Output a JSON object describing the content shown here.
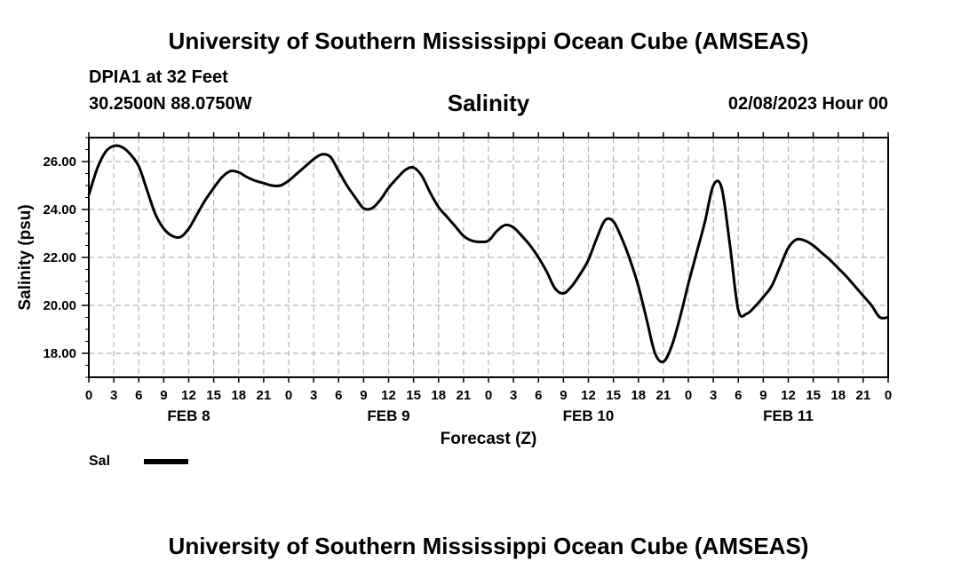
{
  "header": {
    "title": "University of Southern Mississippi Ocean Cube (AMSEAS)",
    "station": "DPIA1 at 32 Feet",
    "coordinates": "30.2500N  88.0750W",
    "run_time": "02/08/2023 Hour 00"
  },
  "footer": {
    "title": "University of Southern Mississippi Ocean Cube (AMSEAS)"
  },
  "legend": {
    "label": "Sal"
  },
  "chart_data": {
    "type": "line",
    "title": "Salinity",
    "xlabel": "Forecast (Z)",
    "ylabel": "Salinity (psu)",
    "xlim": [
      0,
      96
    ],
    "ylim": [
      17,
      27
    ],
    "grid": true,
    "legend_position": "bottom-left",
    "x_ticks": [
      0,
      3,
      6,
      9,
      12,
      15,
      18,
      21,
      24,
      27,
      30,
      33,
      36,
      39,
      42,
      45,
      48,
      51,
      54,
      57,
      60,
      63,
      66,
      69,
      72,
      75,
      78,
      81,
      84,
      87,
      90,
      93,
      96
    ],
    "x_tick_labels": [
      "0",
      "3",
      "6",
      "9",
      "12",
      "15",
      "18",
      "21",
      "0",
      "3",
      "6",
      "9",
      "12",
      "15",
      "18",
      "21",
      "0",
      "3",
      "6",
      "9",
      "12",
      "15",
      "18",
      "21",
      "0",
      "3",
      "6",
      "9",
      "12",
      "15",
      "18",
      "21",
      "0"
    ],
    "y_ticks": [
      18,
      20,
      22,
      24,
      26
    ],
    "y_tick_labels": [
      "18.00",
      "20.00",
      "22.00",
      "24.00",
      "26.00"
    ],
    "date_labels": [
      {
        "text": "FEB 8",
        "x": 12
      },
      {
        "text": "FEB 9",
        "x": 36
      },
      {
        "text": "FEB 10",
        "x": 60
      },
      {
        "text": "FEB 11",
        "x": 84
      }
    ],
    "series": [
      {
        "name": "Sal",
        "color": "#000000",
        "x": [
          0,
          1,
          2,
          3,
          4,
          5,
          6,
          7,
          8,
          9,
          10,
          11,
          12,
          13,
          14,
          15,
          16,
          17,
          18,
          19,
          20,
          21,
          22,
          23,
          24,
          25,
          26,
          27,
          28,
          29,
          30,
          31,
          32,
          33,
          34,
          35,
          36,
          37,
          38,
          39,
          40,
          41,
          42,
          43,
          44,
          45,
          46,
          47,
          48,
          49,
          50,
          51,
          52,
          53,
          54,
          55,
          56,
          57,
          58,
          59,
          60,
          61,
          62,
          63,
          64,
          65,
          66,
          67,
          68,
          69,
          70,
          71,
          72,
          73,
          74,
          75,
          76,
          77,
          78,
          79,
          80,
          81,
          82,
          83,
          84,
          85,
          86,
          87,
          88,
          89,
          90,
          91,
          92,
          93,
          94,
          95,
          96
        ],
        "values": [
          24.6,
          25.7,
          26.4,
          26.65,
          26.6,
          26.3,
          25.8,
          24.8,
          23.8,
          23.2,
          22.9,
          22.85,
          23.2,
          23.8,
          24.4,
          24.9,
          25.35,
          25.6,
          25.55,
          25.35,
          25.2,
          25.1,
          25.0,
          25.0,
          25.2,
          25.5,
          25.8,
          26.1,
          26.3,
          26.2,
          25.6,
          25.0,
          24.5,
          24.05,
          24.05,
          24.4,
          24.9,
          25.3,
          25.65,
          25.75,
          25.4,
          24.7,
          24.1,
          23.7,
          23.3,
          22.9,
          22.7,
          22.65,
          22.7,
          23.1,
          23.35,
          23.25,
          22.9,
          22.5,
          22.0,
          21.4,
          20.7,
          20.5,
          20.8,
          21.3,
          21.9,
          22.8,
          23.55,
          23.5,
          22.8,
          21.9,
          20.8,
          19.4,
          18.0,
          17.65,
          18.3,
          19.5,
          20.9,
          22.2,
          23.5,
          25.0,
          24.9,
          22.5,
          19.8,
          19.65,
          19.95,
          20.35,
          20.8,
          21.6,
          22.4,
          22.75,
          22.7,
          22.5,
          22.2,
          21.9,
          21.55,
          21.2,
          20.8,
          20.4,
          20.0,
          19.5,
          19.5
        ]
      }
    ]
  }
}
